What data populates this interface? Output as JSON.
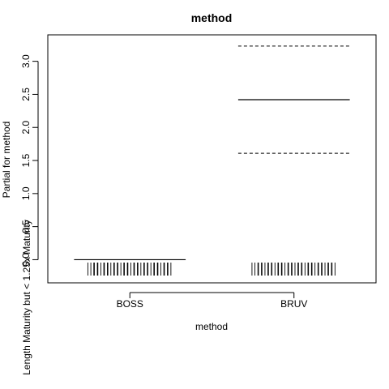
{
  "chart_data": {
    "type": "partial-effect",
    "title": "method",
    "xlabel": "method",
    "ylabel": "Partial for method",
    "overlay_text": "Length Maturity but < 1.25x Maturity",
    "categories": [
      "BOSS",
      "BRUV"
    ],
    "fit": [
      0.0,
      2.42
    ],
    "lower": [
      null,
      1.61
    ],
    "upper": [
      null,
      3.23
    ],
    "ylim": [
      -0.35,
      3.4
    ],
    "yticks": [
      0.0,
      0.5,
      1.0,
      1.5,
      2.0,
      2.5,
      3.0
    ],
    "ytick_labels": [
      "0.0",
      "0.5",
      "1.0",
      "1.5",
      "2.0",
      "2.5",
      "3.0"
    ],
    "rug": true,
    "grid": false,
    "legend": "none"
  }
}
